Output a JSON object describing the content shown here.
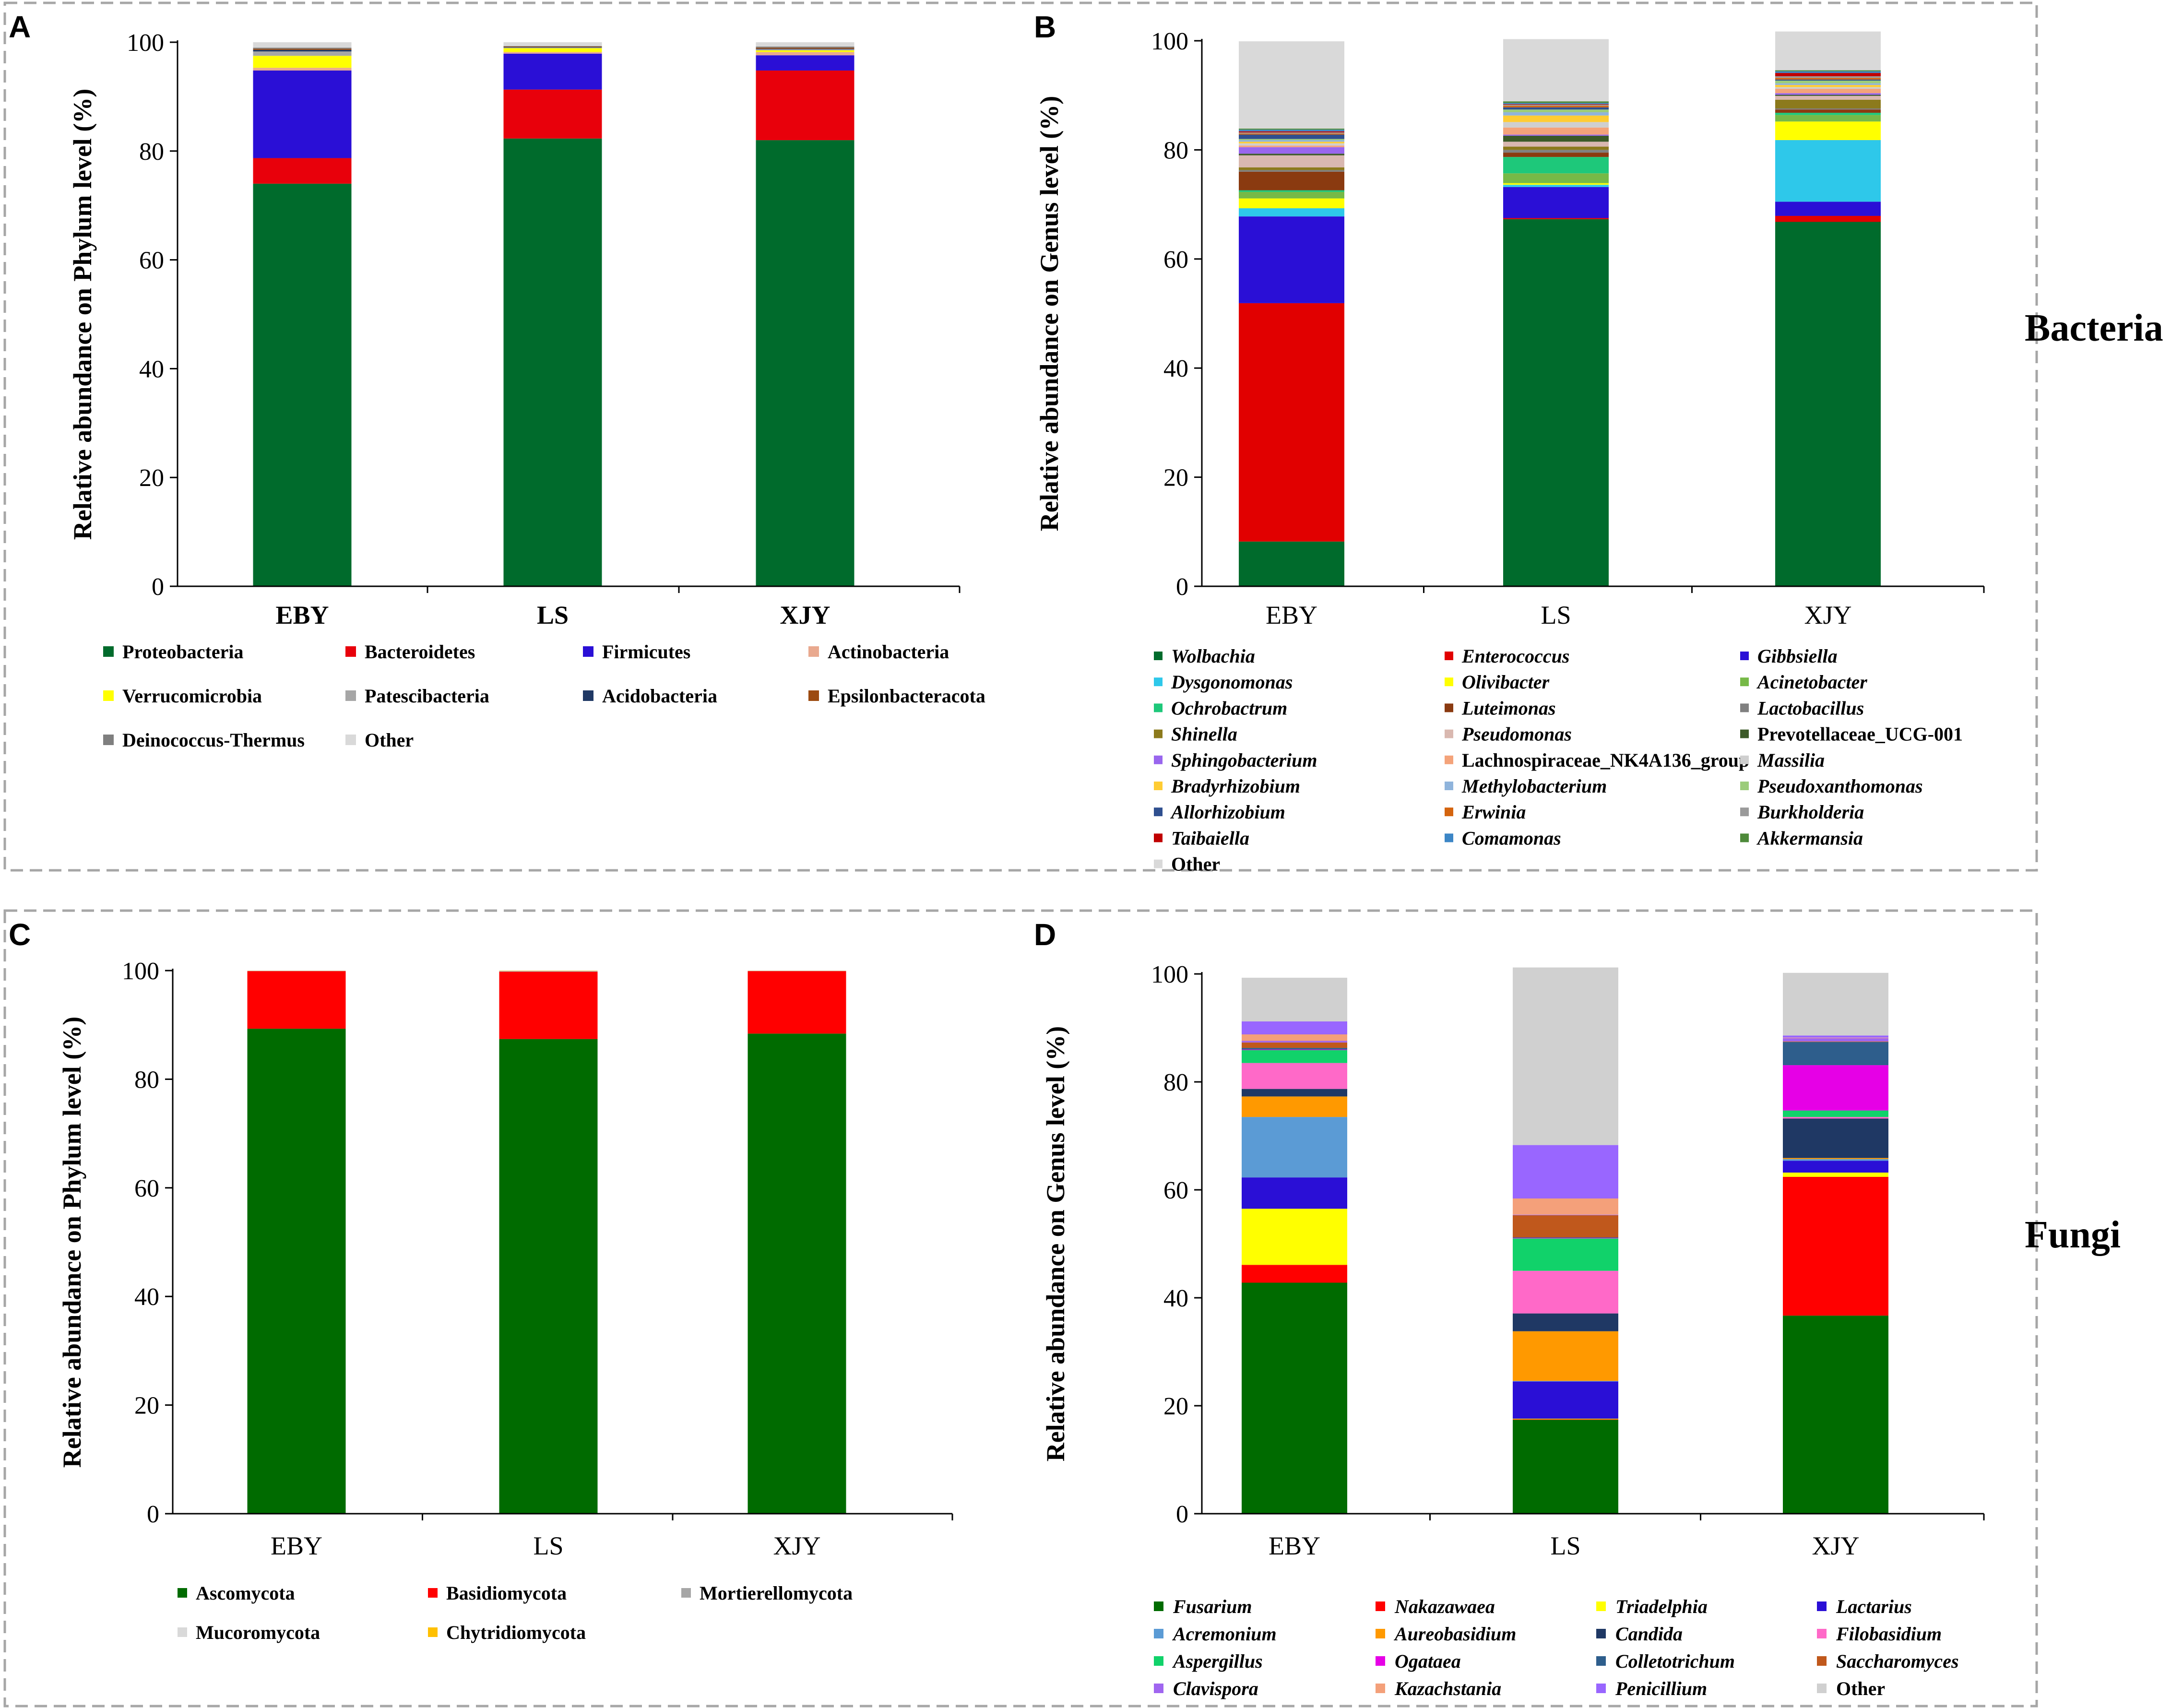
{
  "figure": {
    "side_labels": {
      "bacteria": "Bacteria",
      "fungi": "Fungi"
    }
  },
  "chart_data": [
    {
      "panel": "A",
      "type": "stacked-bar",
      "ylabel": "Relative abundance on Phylum level (%)",
      "yticks": [
        0,
        20,
        40,
        60,
        80,
        100
      ],
      "ylim": [
        0,
        100
      ],
      "categories": [
        "EBY",
        "LS",
        "XJY"
      ],
      "series": [
        {
          "name": "Proteobacteria",
          "color": "#006b2c",
          "values": [
            74.0,
            82.3,
            82.0
          ]
        },
        {
          "name": "Bacteroidetes",
          "color": "#e8000b",
          "values": [
            4.7,
            9.0,
            12.8
          ]
        },
        {
          "name": "Firmicutes",
          "color": "#2a0fd6",
          "values": [
            16.1,
            6.6,
            2.8
          ]
        },
        {
          "name": "Actinobacteria",
          "color": "#e9a98f",
          "values": [
            0.5,
            0.3,
            0.6
          ]
        },
        {
          "name": "Verrucomicrobia",
          "color": "#ffff00",
          "values": [
            2.2,
            0.7,
            0.3
          ]
        },
        {
          "name": "Patescibacteria",
          "color": "#a6a6a6",
          "values": [
            0.8,
            0.1,
            0.2
          ]
        },
        {
          "name": "Acidobacteria",
          "color": "#1f3864",
          "values": [
            0.3,
            0.1,
            0.1
          ]
        },
        {
          "name": "Epsilonbacteracota",
          "color": "#9c4a10",
          "values": [
            0.2,
            0.1,
            0.2
          ]
        },
        {
          "name": "Deinococcus-Thermus",
          "color": "#7f7f7f",
          "values": [
            0.2,
            0.1,
            0.2
          ]
        },
        {
          "name": "Other",
          "color": "#d9d9d9",
          "values": [
            1.0,
            0.7,
            0.8
          ]
        }
      ]
    },
    {
      "panel": "B",
      "type": "stacked-bar",
      "ylabel": "Relative abundance on Genus level (%)",
      "yticks": [
        0,
        20,
        40,
        60,
        80,
        100
      ],
      "ylim": [
        0,
        100
      ],
      "categories": [
        "EBY",
        "LS",
        "XJY"
      ],
      "series": [
        {
          "name": "Wolbachia",
          "italic": true,
          "color": "#006b2c",
          "values": [
            8.2,
            67.3,
            66.8
          ]
        },
        {
          "name": "Enterococcus",
          "italic": true,
          "color": "#e10000",
          "values": [
            43.7,
            0.2,
            1.1
          ]
        },
        {
          "name": "Gibbsiella",
          "italic": true,
          "color": "#2a0fd6",
          "values": [
            15.9,
            5.7,
            2.6
          ]
        },
        {
          "name": "Dysgonomonas",
          "italic": true,
          "color": "#2ec8ea",
          "values": [
            1.5,
            0.4,
            11.3
          ]
        },
        {
          "name": "Olivibacter",
          "italic": true,
          "color": "#ffff00",
          "values": [
            1.8,
            0.3,
            3.4
          ]
        },
        {
          "name": "Acinetobacter",
          "italic": true,
          "color": "#76b947",
          "values": [
            1.2,
            1.8,
            1.2
          ]
        },
        {
          "name": "Ochrobactrum",
          "italic": true,
          "color": "#1ec87a",
          "values": [
            0.3,
            3.0,
            0.4
          ]
        },
        {
          "name": "Luteimonas",
          "italic": true,
          "color": "#8a3a10",
          "values": [
            3.4,
            0.8,
            0.6
          ]
        },
        {
          "name": "Lactobacillus",
          "italic": true,
          "color": "#808080",
          "values": [
            0.3,
            0.5,
            0.2
          ]
        },
        {
          "name": "Shinella",
          "italic": true,
          "color": "#8c7a1c",
          "values": [
            0.5,
            0.6,
            1.6
          ]
        },
        {
          "name": "Pseudomonas",
          "italic": true,
          "color": "#d9b8b0",
          "values": [
            2.2,
            0.9,
            0.7
          ]
        },
        {
          "name": "Prevotellaceae_UCG-001",
          "italic": false,
          "color": "#3c5a28",
          "values": [
            0.3,
            1.1,
            0.2
          ]
        },
        {
          "name": "Sphingobacterium",
          "italic": true,
          "color": "#9966ee",
          "values": [
            1.2,
            0.2,
            0.3
          ]
        },
        {
          "name": "Lachnospiraceae_NK4A136_group",
          "italic": false,
          "color": "#f4a37a",
          "values": [
            0.3,
            1.3,
            0.8
          ]
        },
        {
          "name": "Massilia",
          "italic": true,
          "color": "#cfcfcf",
          "values": [
            0.4,
            1.0,
            0.3
          ]
        },
        {
          "name": "Bradyrhizobium",
          "italic": true,
          "color": "#ffcc33",
          "values": [
            0.3,
            1.2,
            0.4
          ]
        },
        {
          "name": "Methylobacterium",
          "italic": true,
          "color": "#8fb4dc",
          "values": [
            0.3,
            0.6,
            0.3
          ]
        },
        {
          "name": "Pseudoxanthomonas",
          "italic": true,
          "color": "#9ccc7a",
          "values": [
            0.2,
            0.5,
            0.5
          ]
        },
        {
          "name": "Allorhizobium",
          "italic": true,
          "color": "#2f4f8f",
          "values": [
            0.8,
            0.4,
            0.2
          ]
        },
        {
          "name": "Erwinia",
          "italic": true,
          "color": "#d4640e",
          "values": [
            0.2,
            0.3,
            0.3
          ]
        },
        {
          "name": "Burkholderia",
          "italic": true,
          "color": "#9a9a9a",
          "values": [
            0.2,
            0.2,
            0.3
          ]
        },
        {
          "name": "Taibaiella",
          "italic": true,
          "color": "#c00000",
          "values": [
            0.2,
            0.1,
            0.6
          ]
        },
        {
          "name": "Comamonas",
          "italic": true,
          "color": "#3c86c6",
          "values": [
            0.3,
            0.2,
            0.3
          ]
        },
        {
          "name": "Akkermansia",
          "italic": true,
          "color": "#4e8a3a",
          "values": [
            0.2,
            0.3,
            0.2
          ]
        },
        {
          "name": "Other",
          "italic": false,
          "color": "#d9d9d9",
          "values": [
            16.0,
            11.4,
            7.1
          ]
        }
      ]
    },
    {
      "panel": "C",
      "type": "stacked-bar",
      "ylabel": "Relative abundance on Phylum level (%)",
      "yticks": [
        0,
        20,
        40,
        60,
        80,
        100
      ],
      "ylim": [
        0,
        100
      ],
      "categories": [
        "EBY",
        "LS",
        "XJY"
      ],
      "series": [
        {
          "name": "Ascomycota",
          "color": "#006b00",
          "values": [
            89.3,
            87.4,
            88.4
          ]
        },
        {
          "name": "Basidiomycota",
          "color": "#ff0000",
          "values": [
            10.6,
            12.4,
            11.5
          ]
        },
        {
          "name": "Mortierellomycota",
          "color": "#a6a6a6",
          "values": [
            0.05,
            0.1,
            0.05
          ]
        },
        {
          "name": "Mucoromycota",
          "color": "#d9d9d9",
          "values": [
            0.03,
            0.05,
            0.03
          ]
        },
        {
          "name": "Chytridiomycota",
          "color": "#ffc000",
          "values": [
            0.02,
            0.05,
            0.02
          ]
        }
      ]
    },
    {
      "panel": "D",
      "type": "stacked-bar",
      "ylabel": "Relative abundance on Genus level (%)",
      "yticks": [
        0,
        20,
        40,
        60,
        80,
        100
      ],
      "ylim": [
        0,
        100
      ],
      "categories": [
        "EBY",
        "LS",
        "XJY"
      ],
      "series": [
        {
          "name": "Fusarium",
          "italic": true,
          "color": "#006b00",
          "values": [
            42.8,
            17.4,
            36.7
          ]
        },
        {
          "name": "Nakazawaea",
          "italic": true,
          "color": "#ff0000",
          "values": [
            3.3,
            0.1,
            25.7
          ]
        },
        {
          "name": "Triadelphia",
          "italic": true,
          "color": "#ffff00",
          "values": [
            10.4,
            0.1,
            0.8
          ]
        },
        {
          "name": "Lactarius",
          "italic": true,
          "color": "#2a0fd6",
          "values": [
            5.8,
            6.9,
            2.2
          ]
        },
        {
          "name": "Acremonium",
          "italic": true,
          "color": "#5b9bd5",
          "values": [
            11.2,
            0.1,
            0.3
          ]
        },
        {
          "name": "Aureobasidium",
          "italic": true,
          "color": "#ff9900",
          "values": [
            3.8,
            9.2,
            0.2
          ]
        },
        {
          "name": "Candida",
          "italic": true,
          "color": "#1f3864",
          "values": [
            1.4,
            3.3,
            7.3
          ]
        },
        {
          "name": "Filobasidium",
          "italic": true,
          "color": "#ff69c8",
          "values": [
            4.8,
            7.9,
            0.3
          ]
        },
        {
          "name": "Aspergillus",
          "italic": true,
          "color": "#11d26a",
          "values": [
            2.4,
            6.0,
            1.2
          ]
        },
        {
          "name": "Ogataea",
          "italic": true,
          "color": "#e600e6",
          "values": [
            0.1,
            0.1,
            8.4
          ]
        },
        {
          "name": "Colletotrichum",
          "italic": true,
          "color": "#2e5e8c",
          "values": [
            0.3,
            0.1,
            4.3
          ]
        },
        {
          "name": "Saccharomyces",
          "italic": true,
          "color": "#c0581c",
          "values": [
            1.0,
            4.1,
            0.1
          ]
        },
        {
          "name": "Clavispora",
          "italic": true,
          "color": "#a066f0",
          "values": [
            0.3,
            0.1,
            0.6
          ]
        },
        {
          "name": "Kazachstania",
          "italic": true,
          "color": "#f4a07a",
          "values": [
            1.2,
            3.0,
            0.1
          ]
        },
        {
          "name": "Penicillium",
          "italic": true,
          "color": "#9966ff",
          "values": [
            2.4,
            9.9,
            0.4
          ]
        },
        {
          "name": "Other",
          "italic": false,
          "color": "#d0d0d0",
          "values": [
            8.1,
            32.9,
            11.6
          ]
        }
      ]
    }
  ]
}
